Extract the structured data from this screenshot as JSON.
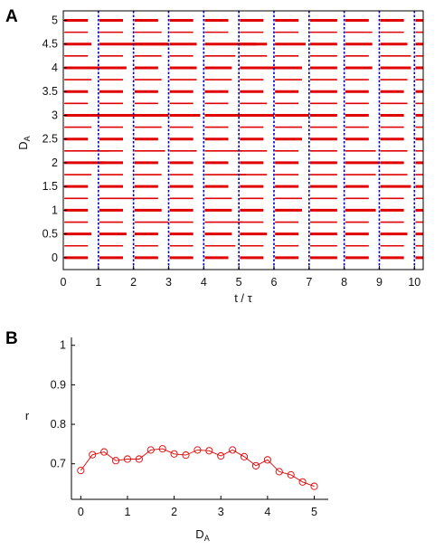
{
  "panels": {
    "a_label": "A",
    "b_label": "B"
  },
  "chart_data": [
    {
      "type": "raster",
      "panel": "A",
      "title": "",
      "xlabel": "t / τ",
      "ylabel_main": "D",
      "ylabel_sub": "A",
      "xlim": [
        0,
        10.25
      ],
      "ylim": [
        -0.25,
        5.2
      ],
      "xticks": [
        0,
        1,
        2,
        3,
        4,
        5,
        6,
        7,
        8,
        9,
        10
      ],
      "yticks": [
        0,
        0.5,
        1,
        1.5,
        2,
        2.5,
        3,
        3.5,
        4,
        4.5,
        5
      ],
      "ytick_labels": [
        "0",
        "0.5",
        "1",
        "1.5",
        "2",
        "2.5",
        "3",
        "3.5",
        "4",
        "4.5",
        "5"
      ],
      "grid": false,
      "vertical_lines_at": [
        1,
        2,
        3,
        4,
        5,
        6,
        7,
        8,
        9,
        10
      ],
      "colors": {
        "bursts": "#e00000",
        "vlines": "#0000cc",
        "axes": "#000000"
      },
      "period_starts": [
        0,
        1,
        2,
        3,
        4,
        5,
        6,
        7,
        8,
        9,
        10
      ],
      "rows": [
        {
          "D": 0.0,
          "durations": [
            0.7,
            0.7,
            0.7,
            0.7,
            0.7,
            0.7,
            0.7,
            0.8,
            0.7,
            0.7,
            0.3
          ]
        },
        {
          "D": 0.25,
          "durations": [
            0.7,
            0.7,
            0.7,
            0.7,
            0.9,
            0.7,
            0.7,
            0.8,
            0.7,
            0.7,
            0.3
          ]
        },
        {
          "D": 0.5,
          "durations": [
            0.8,
            0.8,
            0.7,
            0.7,
            0.8,
            0.8,
            0.7,
            0.8,
            0.7,
            0.8,
            0.3
          ]
        },
        {
          "D": 0.75,
          "durations": [
            0.7,
            0.7,
            1.0,
            0.7,
            1.1,
            0.7,
            0.7,
            0.8,
            0.7,
            0.7,
            0.3
          ]
        },
        {
          "D": 1.0,
          "durations": [
            0.7,
            0.7,
            0.8,
            0.7,
            0.8,
            0.7,
            0.8,
            0.8,
            0.9,
            0.7,
            0.3
          ]
        },
        {
          "D": 1.25,
          "durations": [
            0.7,
            1.1,
            0.7,
            0.7,
            0.8,
            0.7,
            0.8,
            0.8,
            0.7,
            0.7,
            0.3
          ]
        },
        {
          "D": 1.5,
          "durations": [
            0.7,
            0.7,
            0.7,
            0.7,
            0.7,
            0.7,
            0.7,
            0.8,
            0.7,
            0.9,
            0.3
          ]
        },
        {
          "D": 1.75,
          "durations": [
            0.8,
            0.7,
            0.8,
            0.7,
            1.2,
            0.8,
            0.7,
            0.8,
            0.9,
            0.8,
            0.3
          ]
        },
        {
          "D": 2.0,
          "durations": [
            1.2,
            0.7,
            0.7,
            0.7,
            0.7,
            0.7,
            0.7,
            0.8,
            1.0,
            0.7,
            0.3
          ]
        },
        {
          "D": 2.25,
          "durations": [
            1.3,
            0.7,
            0.9,
            0.8,
            1.1,
            0.8,
            0.7,
            0.8,
            0.9,
            0.8,
            0.3
          ]
        },
        {
          "D": 2.5,
          "durations": [
            0.7,
            0.7,
            0.7,
            0.7,
            0.7,
            0.7,
            0.8,
            0.8,
            0.7,
            0.7,
            0.3
          ]
        },
        {
          "D": 2.75,
          "durations": [
            0.8,
            0.7,
            0.8,
            0.7,
            0.7,
            0.7,
            0.8,
            0.8,
            0.7,
            0.7,
            0.3
          ]
        },
        {
          "D": 3.0,
          "durations": [
            1.1,
            1.5,
            1.0,
            0.9,
            1.2,
            1.0,
            1.0,
            0.8,
            0.7,
            0.7,
            0.3
          ]
        },
        {
          "D": 3.25,
          "durations": [
            0.7,
            0.7,
            0.7,
            0.7,
            0.7,
            0.8,
            0.7,
            0.8,
            0.7,
            0.8,
            0.3
          ]
        },
        {
          "D": 3.5,
          "durations": [
            0.7,
            0.7,
            0.7,
            0.7,
            0.7,
            0.7,
            0.7,
            0.8,
            0.7,
            0.7,
            0.3
          ]
        },
        {
          "D": 3.75,
          "durations": [
            0.8,
            0.7,
            0.8,
            0.8,
            0.8,
            0.7,
            0.8,
            0.8,
            0.7,
            0.8,
            0.3
          ]
        },
        {
          "D": 4.0,
          "durations": [
            1.2,
            0.8,
            0.7,
            0.8,
            0.8,
            1.1,
            0.8,
            0.8,
            0.8,
            0.9,
            0.3
          ]
        },
        {
          "D": 4.25,
          "durations": [
            0.7,
            0.7,
            0.8,
            0.7,
            0.9,
            0.8,
            0.7,
            0.8,
            0.7,
            0.9,
            0.3
          ]
        },
        {
          "D": 4.5,
          "durations": [
            0.8,
            2.0,
            1.0,
            0.8,
            1.5,
            0.8,
            0.9,
            0.8,
            0.8,
            0.8,
            0.3
          ]
        },
        {
          "D": 4.75,
          "durations": [
            0.7,
            0.7,
            0.8,
            0.7,
            0.7,
            0.7,
            0.7,
            0.8,
            0.8,
            0.7,
            0.3
          ]
        },
        {
          "D": 5.0,
          "durations": [
            0.7,
            0.7,
            0.7,
            0.7,
            0.7,
            0.7,
            0.7,
            0.8,
            0.7,
            0.7,
            0.3
          ]
        }
      ]
    },
    {
      "type": "line",
      "panel": "B",
      "title": "",
      "xlabel_main": "D",
      "xlabel_sub": "A",
      "ylabel": "r",
      "xlim": [
        -0.2,
        5.3
      ],
      "ylim": [
        0.61,
        1.02
      ],
      "xticks": [
        0,
        1,
        2,
        3,
        4,
        5
      ],
      "yticks": [
        0.7,
        0.8,
        0.9,
        1
      ],
      "ytick_labels": [
        "0.7",
        "0.8",
        "0.9",
        "1"
      ],
      "grid": false,
      "marker": "open-circle",
      "colors": {
        "series": "#e00000",
        "axes": "#000000"
      },
      "x": [
        0,
        0.25,
        0.5,
        0.75,
        1,
        1.25,
        1.5,
        1.75,
        2,
        2.25,
        2.5,
        2.75,
        3,
        3.25,
        3.5,
        3.75,
        4,
        4.25,
        4.5,
        4.75,
        5
      ],
      "series": [
        {
          "values": [
            0.683,
            0.723,
            0.73,
            0.708,
            0.712,
            0.712,
            0.735,
            0.738,
            0.725,
            0.722,
            0.735,
            0.733,
            0.72,
            0.735,
            0.718,
            0.695,
            0.71,
            0.68,
            0.672,
            0.654,
            0.643
          ]
        }
      ]
    }
  ]
}
